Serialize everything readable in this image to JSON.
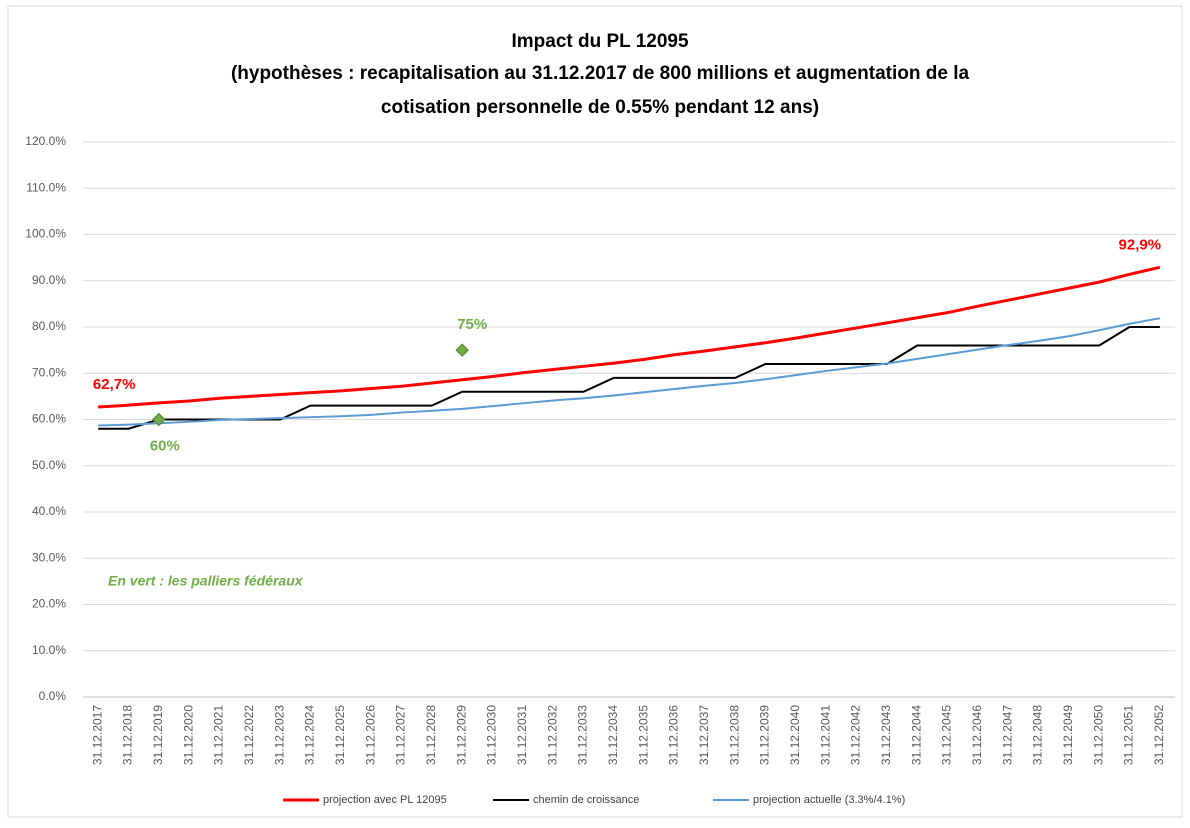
{
  "chart_data": {
    "type": "line",
    "title": [
      "Impact du PL 12095",
      "(hypothèses : recapitalisation au 31.12.2017 de 800 millions et augmentation de la",
      "cotisation personnelle de 0.55% pendant 12 ans)"
    ],
    "annotation": "En vert : les palliers fédéraux",
    "categories": [
      "31.12.2017",
      "31.12.2018",
      "31.12.2019",
      "31.12.2020",
      "31.12.2021",
      "31.12.2022",
      "31.12.2023",
      "31.12.2024",
      "31.12.2025",
      "31.12.2026",
      "31.12.2027",
      "31.12.2028",
      "31.12.2029",
      "31.12.2030",
      "31.12.2031",
      "31.12.2032",
      "31.12.2033",
      "31.12.2034",
      "31.12.2035",
      "31.12.2036",
      "31.12.2037",
      "31.12.2038",
      "31.12.2039",
      "31.12.2040",
      "31.12.2041",
      "31.12.2042",
      "31.12.2043",
      "31.12.2044",
      "31.12.2045",
      "31.12.2046",
      "31.12.2047",
      "31.12.2048",
      "31.12.2049",
      "31.12.2050",
      "31.12.2051",
      "31.12.2052"
    ],
    "ylim": [
      0,
      120
    ],
    "yticks": [
      {
        "value": 0,
        "label": "0.0%"
      },
      {
        "value": 10,
        "label": "10.0%"
      },
      {
        "value": 20,
        "label": "20.0%"
      },
      {
        "value": 30,
        "label": "30.0%"
      },
      {
        "value": 40,
        "label": "40.0%"
      },
      {
        "value": 50,
        "label": "50.0%"
      },
      {
        "value": 60,
        "label": "60.0%"
      },
      {
        "value": 70,
        "label": "70.0%"
      },
      {
        "value": 80,
        "label": "80.0%"
      },
      {
        "value": 90,
        "label": "90.0%"
      },
      {
        "value": 100,
        "label": "100.0%"
      },
      {
        "value": 110,
        "label": "110.0%"
      },
      {
        "value": 120,
        "label": "120.0%"
      }
    ],
    "grid": true,
    "legend": "bottom",
    "series": [
      {
        "name": "projection avec PL 12095",
        "color": "#ff0000",
        "label_color": "#ff0000",
        "values": [
          62.7,
          63.1,
          63.6,
          64.0,
          64.6,
          65.0,
          65.4,
          65.8,
          66.2,
          66.7,
          67.2,
          67.9,
          68.6,
          69.3,
          70.1,
          70.8,
          71.5,
          72.2,
          73.0,
          74.0,
          74.8,
          75.7,
          76.6,
          77.6,
          78.7,
          79.8,
          80.9,
          82.0,
          83.1,
          84.5,
          85.8,
          87.1,
          88.4,
          89.7,
          91.4,
          92.9
        ],
        "value_labels": [
          "62,7%",
          null,
          null,
          null,
          null,
          null,
          null,
          null,
          null,
          null,
          null,
          null,
          null,
          null,
          null,
          null,
          null,
          null,
          null,
          null,
          null,
          null,
          null,
          null,
          null,
          null,
          null,
          null,
          null,
          null,
          null,
          null,
          null,
          null,
          null,
          "92,9%"
        ]
      },
      {
        "name": "chemin de croissance",
        "color": "#000000",
        "values": [
          58,
          58,
          60,
          60,
          60,
          60,
          60,
          63,
          63,
          63,
          63,
          63,
          66,
          66,
          66,
          66,
          66,
          69,
          69,
          69,
          69,
          69,
          72,
          72,
          72,
          72,
          72,
          76,
          76,
          76,
          76,
          76,
          76,
          76,
          80,
          80
        ]
      },
      {
        "name": "projection actuelle (3.3%/4.1%)",
        "color": "#5b9bd5",
        "values": [
          58.7,
          58.9,
          59.2,
          59.5,
          59.9,
          60.1,
          60.3,
          60.5,
          60.7,
          61.0,
          61.5,
          61.9,
          62.3,
          62.9,
          63.5,
          64.1,
          64.6,
          65.2,
          65.9,
          66.6,
          67.3,
          67.9,
          68.7,
          69.6,
          70.5,
          71.3,
          72.1,
          73.1,
          74.1,
          75.1,
          76.1,
          77.0,
          78.0,
          79.3,
          80.7,
          81.9
        ]
      }
    ],
    "markers": {
      "type": "scatter",
      "color": "#70ad47",
      "values": [
        null,
        null,
        60,
        null,
        null,
        null,
        null,
        null,
        null,
        null,
        null,
        null,
        75,
        null,
        null,
        null,
        null,
        null,
        null,
        null,
        null,
        null,
        null,
        null,
        null,
        null,
        null,
        null,
        null,
        null,
        null,
        null,
        null,
        null,
        null,
        null
      ],
      "value_labels": [
        null,
        null,
        "60%",
        null,
        null,
        null,
        null,
        null,
        null,
        null,
        null,
        null,
        "75%",
        null,
        null,
        null,
        null,
        null,
        null,
        null,
        null,
        null,
        null,
        null,
        null,
        null,
        null,
        null,
        null,
        null,
        null,
        null,
        null,
        null,
        null,
        null
      ]
    }
  }
}
